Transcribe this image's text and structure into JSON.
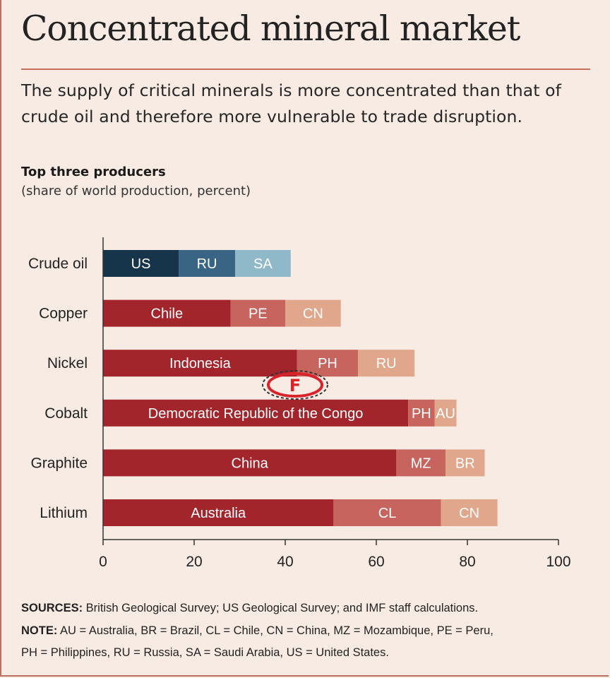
{
  "header": {
    "title": "Concentrated mineral market",
    "subtitle": "The supply of critical minerals is more concentrated than that of crude oil and therefore more vulnerable to trade disruption."
  },
  "chart_header": {
    "title": "Top three producers",
    "subtitle": "(share of world production, percent)"
  },
  "footer": {
    "sources_label": "SOURCES:",
    "sources_text": " British Geological Survey; US Geological Survey; and IMF staff calculations.",
    "note_label": "NOTE:",
    "note_text": " AU = Australia, BR = Brazil, CL = Chile, CN = China, MZ = Mozambique, PE = Peru,",
    "note_text2": "PH = Philippines, RU = Russia, SA = Saudi Arabia, US = United States."
  },
  "watermark": {
    "letter": "F"
  },
  "colors": {
    "oil": [
      "#16354b",
      "#3a6483",
      "#8fb8c9"
    ],
    "minerals": [
      "#a3252c",
      "#c8645e",
      "#e0a78c"
    ],
    "background": "#f8ebe3",
    "accent": "#c6705a"
  },
  "chart_data": {
    "type": "bar",
    "orientation": "horizontal",
    "stacked": true,
    "categories": [
      "Crude oil",
      "Copper",
      "Nickel",
      "Cobalt",
      "Graphite",
      "Lithium"
    ],
    "segments": [
      [
        {
          "label": "US",
          "value": 16.6
        },
        {
          "label": "RU",
          "value": 12.4
        },
        {
          "label": "SA",
          "value": 12.2
        }
      ],
      [
        {
          "label": "Chile",
          "value": 28
        },
        {
          "label": "PE",
          "value": 12
        },
        {
          "label": "CN",
          "value": 12.2
        }
      ],
      [
        {
          "label": "Indonesia",
          "value": 42.6
        },
        {
          "label": "PH",
          "value": 13.4
        },
        {
          "label": "RU",
          "value": 12.4
        }
      ],
      [
        {
          "label": "Democratic Republic of the Congo",
          "value": 67
        },
        {
          "label": "PH",
          "value": 5.8
        },
        {
          "label": "AU",
          "value": 4.8
        }
      ],
      [
        {
          "label": "China",
          "value": 64.4
        },
        {
          "label": "MZ",
          "value": 10.8
        },
        {
          "label": "BR",
          "value": 8.6
        }
      ],
      [
        {
          "label": "Australia",
          "value": 50.6
        },
        {
          "label": "CL",
          "value": 23.6
        },
        {
          "label": "CN",
          "value": 12.4
        }
      ]
    ],
    "x_ticks": [
      "0",
      "20",
      "40",
      "60",
      "80",
      "100"
    ],
    "xlim": [
      0,
      100
    ],
    "grid": false,
    "legend": "none"
  }
}
